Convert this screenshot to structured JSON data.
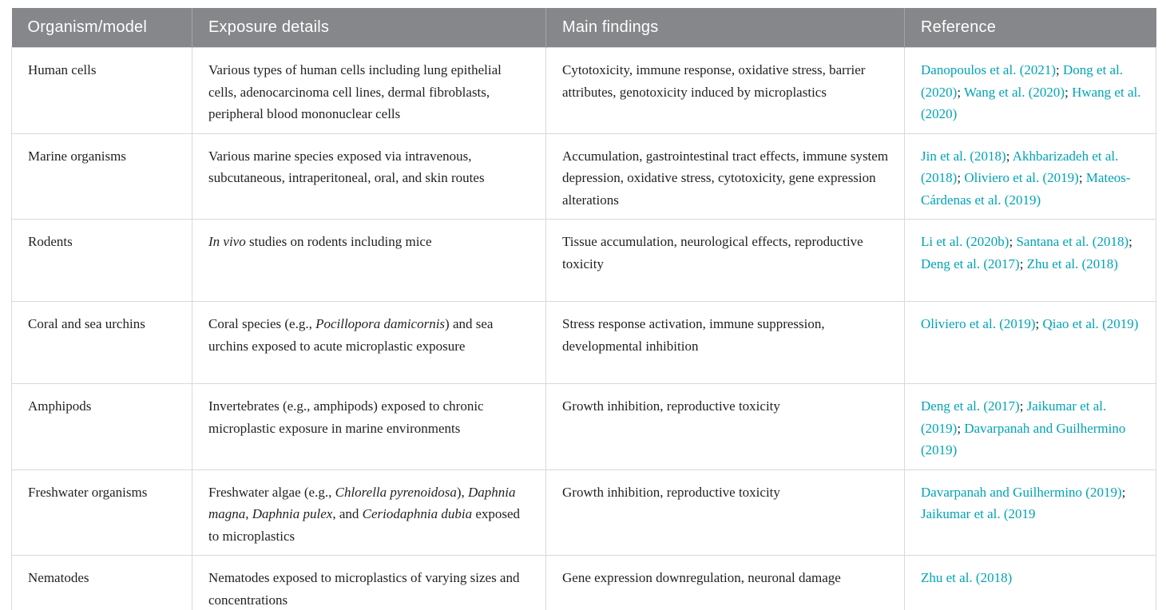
{
  "colors": {
    "header_bg": "#85878a",
    "header_text": "#ffffff",
    "link": "#00a3b5",
    "body_text": "#231f20",
    "row_border": "#d9d9d9",
    "header_divider": "#a2a4a7",
    "bottom_border": "#cfcfcf"
  },
  "table": {
    "headers": [
      "Organism/model",
      "Exposure details",
      "Main findings",
      "Reference"
    ],
    "reference_separator": "; ",
    "rows": [
      {
        "organism": "Human cells",
        "exposure": [
          {
            "text": "Various types of human cells including lung epithelial cells, adenocarcinoma cell lines, dermal fibroblasts, peripheral blood mononuclear cells",
            "italic": false
          }
        ],
        "findings": "Cytotoxicity, immune response, oxidative stress, barrier attributes, genotoxicity induced by microplastics",
        "references": [
          "Danopoulos et al. (2021)",
          "Dong et al. (2020)",
          "Wang et al. (2020)",
          "Hwang et al. (2020)"
        ]
      },
      {
        "organism": "Marine organisms",
        "exposure": [
          {
            "text": "Various marine species exposed via intravenous, subcutaneous, intraperitoneal, oral, and skin routes",
            "italic": false
          }
        ],
        "findings": "Accumulation, gastrointestinal tract effects, immune system depression, oxidative stress, cytotoxicity, gene expression alterations",
        "references": [
          "Jin et al. (2018)",
          "Akhbarizadeh et al. (2018)",
          "Oliviero et al. (2019)",
          "Mateos-Cárdenas et al. (2019)"
        ]
      },
      {
        "organism": "Rodents",
        "exposure": [
          {
            "text": "In vivo",
            "italic": true
          },
          {
            "text": " studies on rodents including mice",
            "italic": false
          }
        ],
        "findings": "Tissue accumulation, neurological effects, reproductive toxicity",
        "references": [
          "Li et al. (2020b)",
          "Santana et al. (2018)",
          "Deng et al. (2017)",
          "Zhu et al. (2018)"
        ]
      },
      {
        "organism": "Coral and sea urchins",
        "exposure": [
          {
            "text": "Coral species (e.g., ",
            "italic": false
          },
          {
            "text": "Pocillopora damicornis",
            "italic": true
          },
          {
            "text": ") and sea urchins exposed to acute microplastic exposure",
            "italic": false
          }
        ],
        "findings": "Stress response activation, immune suppression, developmental inhibition",
        "references": [
          "Oliviero et al. (2019)",
          "Qiao et al. (2019)"
        ]
      },
      {
        "organism": "Amphipods",
        "exposure": [
          {
            "text": "Invertebrates (e.g., amphipods) exposed to chronic microplastic exposure in marine environments",
            "italic": false
          }
        ],
        "findings": "Growth inhibition, reproductive toxicity",
        "references": [
          "Deng et al. (2017)",
          "Jaikumar et al. (2019)",
          "Davarpanah and Guilhermino (2019)"
        ]
      },
      {
        "organism": "Freshwater organisms",
        "exposure": [
          {
            "text": "Freshwater algae (e.g., ",
            "italic": false
          },
          {
            "text": "Chlorella pyrenoidosa",
            "italic": true
          },
          {
            "text": "), ",
            "italic": false
          },
          {
            "text": "Daphnia magna",
            "italic": true
          },
          {
            "text": ", ",
            "italic": false
          },
          {
            "text": "Daphnia pulex",
            "italic": true
          },
          {
            "text": ", and ",
            "italic": false
          },
          {
            "text": "Ceriodaphnia dubia",
            "italic": true
          },
          {
            "text": " exposed to microplastics",
            "italic": false
          }
        ],
        "findings": "Growth inhibition, reproductive toxicity",
        "references": [
          "Davarpanah and Guilhermino (2019)",
          "Jaikumar et al. (2019"
        ]
      },
      {
        "organism": "Nematodes",
        "exposure": [
          {
            "text": "Nematodes exposed to microplastics of varying sizes and concentrations",
            "italic": false
          }
        ],
        "findings": "Gene expression downregulation, neuronal damage",
        "references": [
          "Zhu et al. (2018)"
        ]
      }
    ]
  }
}
